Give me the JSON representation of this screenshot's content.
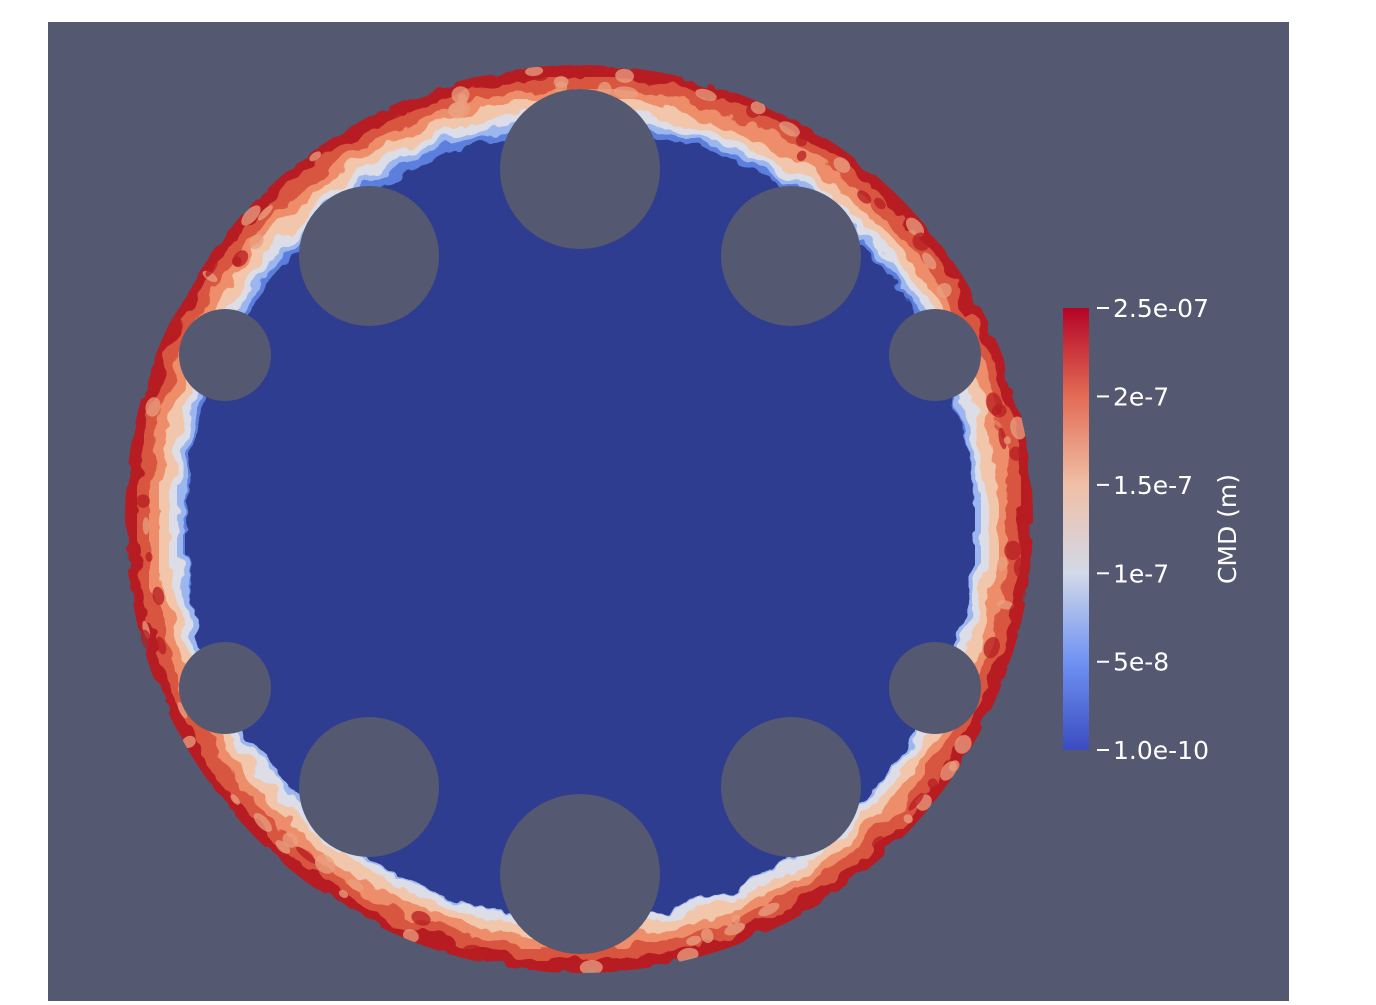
{
  "render_view": {
    "background_color": "#545870",
    "field_name": "CMD (m)",
    "colormap": "Cool to Warm",
    "inner_color": "#2d3d8f",
    "rim_colors": [
      "#b71d22",
      "#d8543f",
      "#ee8d6b",
      "#f1c6aa",
      "#dcdde6",
      "#9cb7ef",
      "#5b7fdd"
    ],
    "hole_color": "#545870"
  },
  "colorbar": {
    "title": "CMD (m)",
    "range": [
      1e-10,
      2.5e-07
    ],
    "gradient_stops": [
      {
        "value": 2.5e-07,
        "color": "#b40426"
      },
      {
        "value": 2e-07,
        "color": "#e36c55"
      },
      {
        "value": 1.5e-07,
        "color": "#f0bfa6"
      },
      {
        "value": 1e-07,
        "color": "#d2d9e8"
      },
      {
        "value": 5e-08,
        "color": "#6f92f3"
      },
      {
        "value": 1e-10,
        "color": "#3b4cc0"
      }
    ],
    "ticks": [
      {
        "value": 2.5e-07,
        "label": "2.5e-07"
      },
      {
        "value": 2e-07,
        "label": "2e-7"
      },
      {
        "value": 1.5e-07,
        "label": "1.5e-7"
      },
      {
        "value": 1e-07,
        "label": "1e-7"
      },
      {
        "value": 5e-08,
        "label": "5e-8"
      },
      {
        "value": 1e-10,
        "label": "1.0e-10"
      }
    ]
  }
}
